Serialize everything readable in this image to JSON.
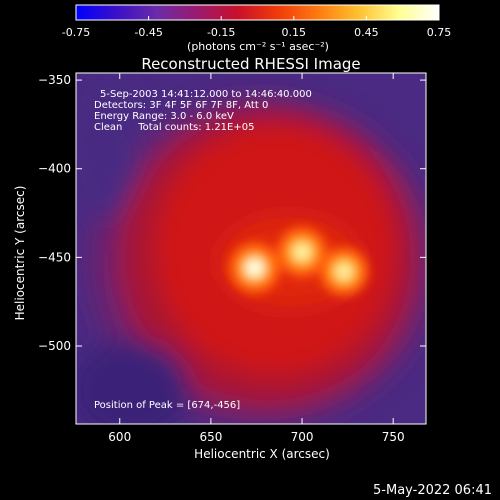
{
  "colorbar": {
    "ticks": [
      "-0.75",
      "-0.45",
      "-0.15",
      "0.15",
      "0.45",
      "0.75"
    ],
    "units_text": "(photons cm⁻² s⁻¹ asec⁻²)",
    "colors": [
      "#0000ff",
      "#3a10c8",
      "#6a2ba8",
      "#9a1a70",
      "#c8102a",
      "#f03a0a",
      "#ff7a10",
      "#ffc030",
      "#ffff90",
      "#ffffff"
    ]
  },
  "chart_data": {
    "type": "heatmap",
    "title": "Reconstructed RHESSI Image",
    "xlabel": "Heliocentric X (arcsec)",
    "ylabel": "Heliocentric Y (arcsec)",
    "xlim": [
      576,
      768
    ],
    "ylim": [
      -544,
      -346
    ],
    "x_ticks": [
      600,
      650,
      700,
      750
    ],
    "y_ticks": [
      -350,
      -400,
      -450,
      -500
    ],
    "x_tick_labels": [
      "600",
      "650",
      "700",
      "750"
    ],
    "y_tick_labels": [
      "−350",
      "−400",
      "−450",
      "−500"
    ],
    "info_lines": [
      "5-Sep-2003 14:41:12.000 to 14:46:40.000",
      "Detectors: 3F 4F 5F 6F 7F 8F, Att 0",
      "Energy Range: 3.0 - 6.0 keV",
      "Clean     Total counts: 1.21E+05"
    ],
    "peak_text": "Position of Peak = [674,-456]",
    "sources": [
      {
        "x": 674,
        "y": -456,
        "level": 1.0
      },
      {
        "x": 700,
        "y": -447,
        "level": 0.92
      },
      {
        "x": 723,
        "y": -458,
        "level": 0.82
      }
    ]
  },
  "footer": {
    "timestamp": "5-May-2022 06:41"
  }
}
